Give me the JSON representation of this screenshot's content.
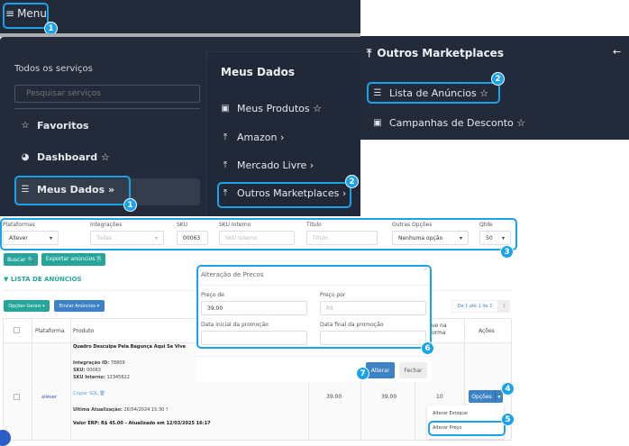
{
  "topbar": {
    "menu_label": "Menu",
    "menu_icon": "hamburger-icon"
  },
  "menu": {
    "all_services": "Todos os serviços",
    "search_placeholder": "Pesquisar serviços",
    "items": [
      {
        "label": "Favoritos",
        "icon": "star-icon"
      },
      {
        "label": "Dashboard ☆",
        "icon": "pie-chart-icon"
      },
      {
        "label": "Meus Dados »",
        "icon": "database-icon"
      }
    ],
    "section_title": "Meus Dados",
    "sub_items": [
      {
        "label": "Meus Produtos ☆",
        "icon": "gift-icon"
      },
      {
        "label": "Amazon ›",
        "icon": "upload-icon"
      },
      {
        "label": "Mercado Livre ›",
        "icon": "upload-icon"
      },
      {
        "label": "Outros Marketplaces ›",
        "icon": "upload-icon"
      }
    ]
  },
  "submenu": {
    "title": "Outros Marketplaces",
    "items": [
      {
        "label": "Lista de Anúncios ☆",
        "icon": "list-icon"
      },
      {
        "label": "Campanhas de Desconto ☆",
        "icon": "money-icon"
      }
    ]
  },
  "filters": {
    "plataformas": {
      "label": "Plataformas",
      "value": "Allever"
    },
    "integracoes": {
      "label": "Integrações",
      "value": "Todas"
    },
    "sku": {
      "label": "SKU",
      "value": "00063"
    },
    "sku_interno": {
      "label": "SKU Interno",
      "placeholder": "SKU Interno"
    },
    "titulo": {
      "label": "Título",
      "placeholder": "Título"
    },
    "outras": {
      "label": "Outras Opções",
      "value": "Nenhuma opção"
    },
    "qtde": {
      "label": "Qtde",
      "value": "50"
    }
  },
  "actions": {
    "buscar": "Buscar 🔍",
    "exportar": "Exportar anúncios 🗎",
    "list_title": "▼ LISTA DE ANÚNCIOS",
    "opcoes_gerais": "Opções Gerais ▾",
    "enviar": "Enviar Anúncios ▾",
    "pagination": "De 1 até 1 de 1",
    "page": "1"
  },
  "table": {
    "headers": {
      "plataforma": "Plataforma",
      "produto": "Produto",
      "estoque": "Estoque na Plataforma",
      "acoes": "Ações"
    },
    "row": {
      "platform_logo": "allever",
      "title": "Quadro Desculpa Pela Bagunça Aqui Se Vive",
      "integracao_label": "Integração ID:",
      "integracao": "78809",
      "sku_label": "SKU:",
      "sku": "00063",
      "sku_interno_label": "SKU Interno:",
      "sku_interno": "12345622",
      "copiar": "Copiar SQL",
      "ultima_label": "Ultima Atualização:",
      "ultima": "26/04/2024 15:30",
      "valor_erp": "Valor ERP: R$ 45.00 - Atualizado em 12/03/2025 16:17",
      "price1": "39.00",
      "price2": "39.00",
      "estoque": "10",
      "opcoes": "Opções"
    },
    "dropdown": [
      "Alterar Estoque",
      "Alterar Preço"
    ]
  },
  "modal": {
    "title": "Alteração de Precos",
    "close": "×",
    "preco_de_label": "Preço de",
    "preco_de": "39,00",
    "preco_por_label": "Preço por",
    "preco_por_placeholder": "R$",
    "data_ini_label": "Data inicial da promoção",
    "data_fim_label": "Data final da promoção",
    "alterar": "Alterar",
    "fechar": "Fechar"
  },
  "badges": [
    "1",
    "1",
    "2",
    "2",
    "3",
    "4",
    "5",
    "6",
    "7"
  ],
  "colors": {
    "dark": "#232b3a",
    "highlight": "#1aa3e8",
    "green": "#26a69a",
    "blue": "#3d82c4"
  }
}
